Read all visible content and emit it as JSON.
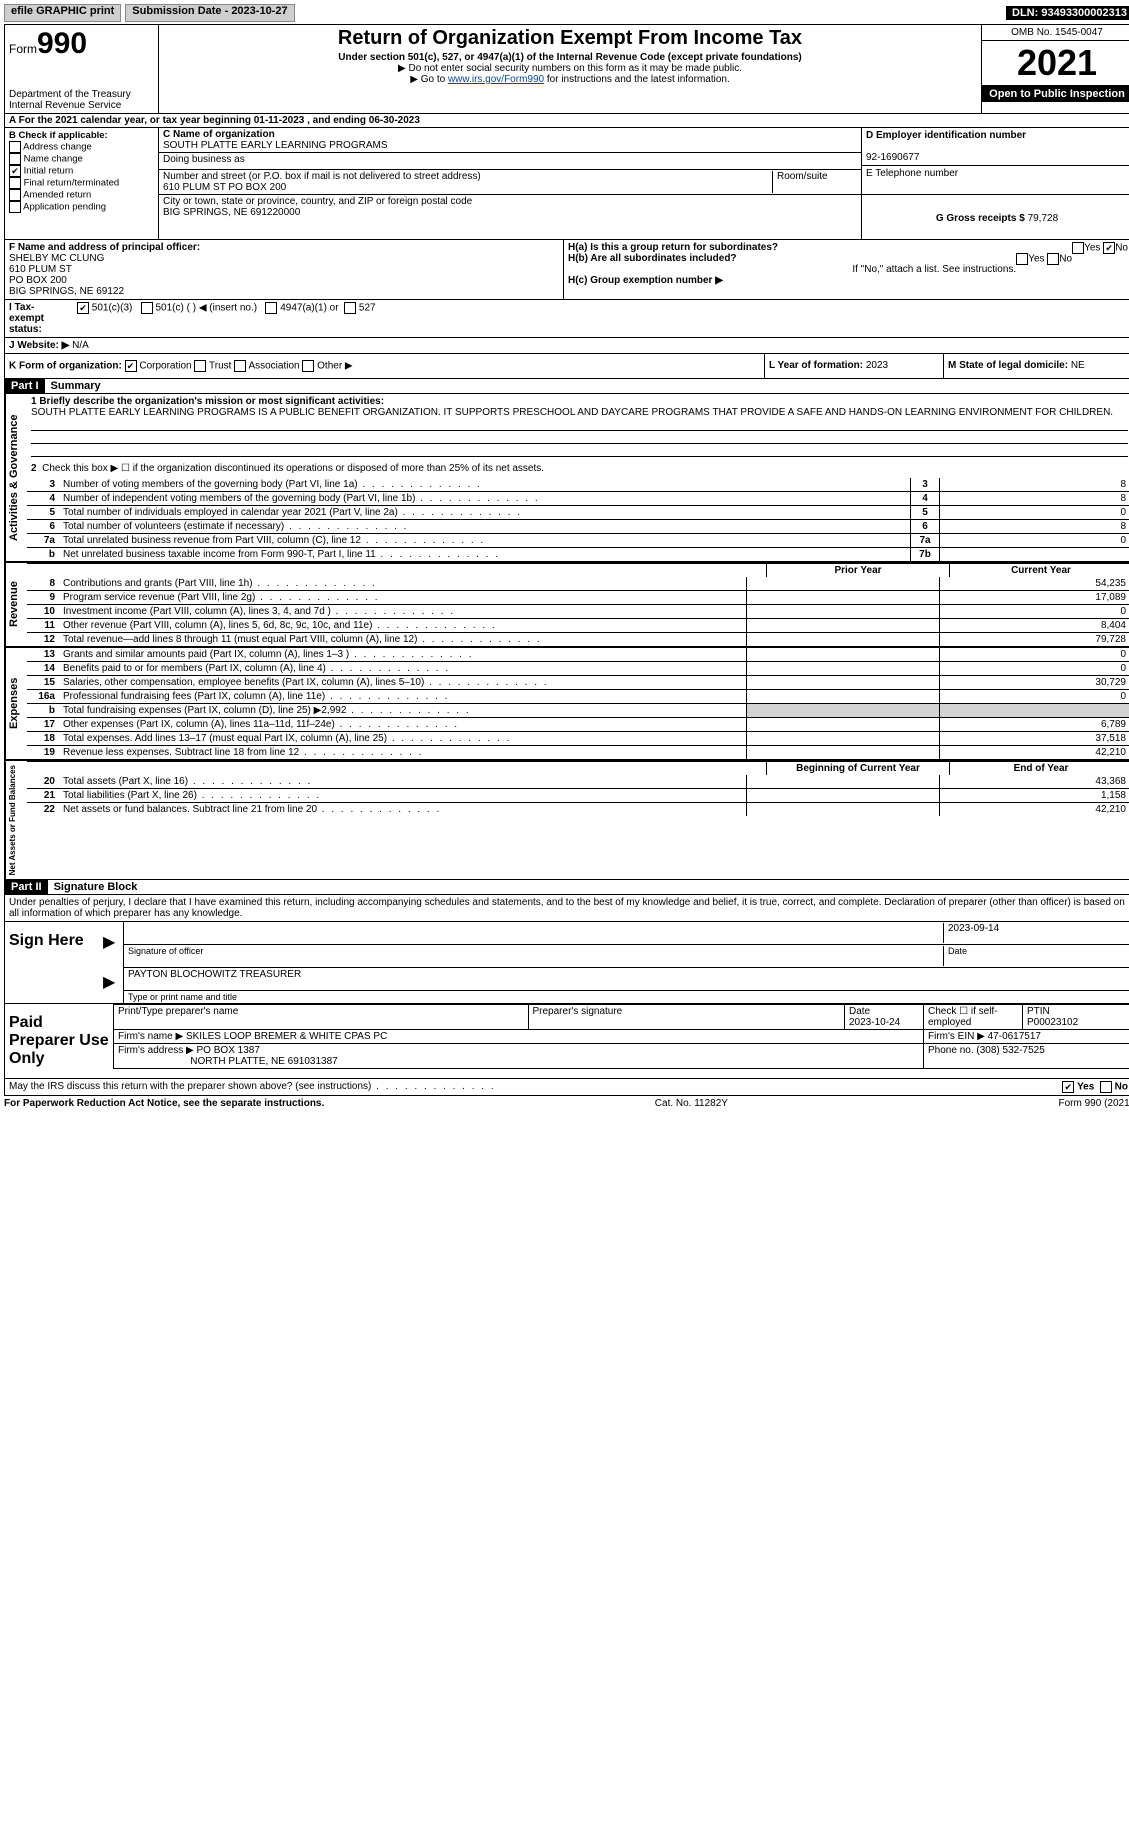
{
  "topbar": {
    "efile": "efile GRAPHIC print",
    "submission": "Submission Date - 2023-10-27",
    "dln": "DLN: 93493300002313"
  },
  "header": {
    "form_word": "Form",
    "form_no": "990",
    "dept": "Department of the Treasury",
    "irs": "Internal Revenue Service",
    "title": "Return of Organization Exempt From Income Tax",
    "sub1": "Under section 501(c), 527, or 4947(a)(1) of the Internal Revenue Code (except private foundations)",
    "sub2": "▶ Do not enter social security numbers on this form as it may be made public.",
    "sub3_pre": "▶ Go to ",
    "sub3_link": "www.irs.gov/Form990",
    "sub3_post": " for instructions and the latest information.",
    "omb": "OMB No. 1545-0047",
    "year": "2021",
    "opi": "Open to Public Inspection"
  },
  "row_a": "A For the 2021 calendar year, or tax year beginning 01-11-2023   , and ending 06-30-2023",
  "col_b": {
    "title": "B Check if applicable:",
    "opts": [
      "Address change",
      "Name change",
      "Initial return",
      "Final return/terminated",
      "Amended return",
      "Application pending"
    ],
    "checked": [
      false,
      false,
      true,
      false,
      false,
      false
    ]
  },
  "col_c": {
    "name_label": "C Name of organization",
    "name": "SOUTH PLATTE EARLY LEARNING PROGRAMS",
    "dba_label": "Doing business as",
    "street_label": "Number and street (or P.O. box if mail is not delivered to street address)",
    "room_label": "Room/suite",
    "street": "610 PLUM ST PO BOX 200",
    "city_label": "City or town, state or province, country, and ZIP or foreign postal code",
    "city": "BIG SPRINGS, NE  691220000"
  },
  "col_de": {
    "d_label": "D Employer identification number",
    "d_val": "92-1690677",
    "e_label": "E Telephone number",
    "g_label": "G Gross receipts $",
    "g_val": "79,728"
  },
  "row_f": {
    "label": "F  Name and address of principal officer:",
    "lines": [
      "SHELBY MC CLUNG",
      "610 PLUM ST",
      "PO BOX 200",
      "BIG SPRINGS, NE  69122"
    ]
  },
  "row_h": {
    "a_label": "H(a)  Is this a group return for subordinates?",
    "a_yes": "Yes",
    "a_no": "No",
    "b_label": "H(b)  Are all subordinates included?",
    "b_yes": "Yes",
    "b_no": "No",
    "b_note": "If \"No,\" attach a list. See instructions.",
    "c_label": "H(c)  Group exemption number ▶"
  },
  "row_i": {
    "label": "I  Tax-exempt status:",
    "opts": [
      "501(c)(3)",
      "501(c) (  ) ◀ (insert no.)",
      "4947(a)(1) or",
      "527"
    ]
  },
  "row_j": {
    "label": "J  Website: ▶",
    "val": "N/A"
  },
  "row_k": {
    "label": "K Form of organization:",
    "opts": [
      "Corporation",
      "Trust",
      "Association",
      "Other ▶"
    ],
    "l_label": "L Year of formation:",
    "l_val": "2023",
    "m_label": "M State of legal domicile:",
    "m_val": "NE"
  },
  "part1": {
    "header": "Part I",
    "title": "Summary",
    "q1_label": "1  Briefly describe the organization's mission or most significant activities:",
    "q1_text": "SOUTH PLATTE EARLY LEARNING PROGRAMS IS A PUBLIC BENEFIT ORGANIZATION. IT SUPPORTS PRESCHOOL AND DAYCARE PROGRAMS THAT PROVIDE A SAFE AND HANDS-ON LEARNING ENVIRONMENT FOR CHILDREN.",
    "q2": "Check this box ▶ ☐  if the organization discontinued its operations or disposed of more than 25% of its net assets.",
    "lines": [
      {
        "n": "3",
        "d": "Number of voting members of the governing body (Part VI, line 1a)",
        "b": "3",
        "v": "8"
      },
      {
        "n": "4",
        "d": "Number of independent voting members of the governing body (Part VI, line 1b)",
        "b": "4",
        "v": "8"
      },
      {
        "n": "5",
        "d": "Total number of individuals employed in calendar year 2021 (Part V, line 2a)",
        "b": "5",
        "v": "0"
      },
      {
        "n": "6",
        "d": "Total number of volunteers (estimate if necessary)",
        "b": "6",
        "v": "8"
      },
      {
        "n": "7a",
        "d": "Total unrelated business revenue from Part VIII, column (C), line 12",
        "b": "7a",
        "v": "0"
      },
      {
        "n": "b",
        "d": "Net unrelated business taxable income from Form 990-T, Part I, line 11",
        "b": "7b",
        "v": ""
      }
    ],
    "prior": "Prior Year",
    "current": "Current Year"
  },
  "revenue": {
    "label": "Revenue",
    "rows": [
      {
        "n": "8",
        "d": "Contributions and grants (Part VIII, line 1h)",
        "p": "",
        "c": "54,235"
      },
      {
        "n": "9",
        "d": "Program service revenue (Part VIII, line 2g)",
        "p": "",
        "c": "17,089"
      },
      {
        "n": "10",
        "d": "Investment income (Part VIII, column (A), lines 3, 4, and 7d )",
        "p": "",
        "c": "0"
      },
      {
        "n": "11",
        "d": "Other revenue (Part VIII, column (A), lines 5, 6d, 8c, 9c, 10c, and 11e)",
        "p": "",
        "c": "8,404"
      },
      {
        "n": "12",
        "d": "Total revenue—add lines 8 through 11 (must equal Part VIII, column (A), line 12)",
        "p": "",
        "c": "79,728"
      }
    ]
  },
  "expenses": {
    "label": "Expenses",
    "rows": [
      {
        "n": "13",
        "d": "Grants and similar amounts paid (Part IX, column (A), lines 1–3 )",
        "p": "",
        "c": "0"
      },
      {
        "n": "14",
        "d": "Benefits paid to or for members (Part IX, column (A), line 4)",
        "p": "",
        "c": "0"
      },
      {
        "n": "15",
        "d": "Salaries, other compensation, employee benefits (Part IX, column (A), lines 5–10)",
        "p": "",
        "c": "30,729"
      },
      {
        "n": "16a",
        "d": "Professional fundraising fees (Part IX, column (A), line 11e)",
        "p": "",
        "c": "0"
      },
      {
        "n": "b",
        "d": "Total fundraising expenses (Part IX, column (D), line 25) ▶2,992",
        "p": "gray",
        "c": "gray"
      },
      {
        "n": "17",
        "d": "Other expenses (Part IX, column (A), lines 11a–11d, 11f–24e)",
        "p": "",
        "c": "6,789"
      },
      {
        "n": "18",
        "d": "Total expenses. Add lines 13–17 (must equal Part IX, column (A), line 25)",
        "p": "",
        "c": "37,518"
      },
      {
        "n": "19",
        "d": "Revenue less expenses. Subtract line 18 from line 12",
        "p": "",
        "c": "42,210"
      }
    ]
  },
  "netassets": {
    "label": "Net Assets or Fund Balances",
    "begin": "Beginning of Current Year",
    "end": "End of Year",
    "rows": [
      {
        "n": "20",
        "d": "Total assets (Part X, line 16)",
        "p": "",
        "c": "43,368"
      },
      {
        "n": "21",
        "d": "Total liabilities (Part X, line 26)",
        "p": "",
        "c": "1,158"
      },
      {
        "n": "22",
        "d": "Net assets or fund balances. Subtract line 21 from line 20",
        "p": "",
        "c": "42,210"
      }
    ]
  },
  "part2": {
    "header": "Part II",
    "title": "Signature Block",
    "perjury": "Under penalties of perjury, I declare that I have examined this return, including accompanying schedules and statements, and to the best of my knowledge and belief, it is true, correct, and complete. Declaration of preparer (other than officer) is based on all information of which preparer has any knowledge."
  },
  "sign": {
    "label": "Sign Here",
    "sig_label": "Signature of officer",
    "date": "2023-09-14",
    "date_label": "Date",
    "name": "PAYTON BLOCHOWITZ  TREASURER",
    "name_label": "Type or print name and title"
  },
  "paid": {
    "label": "Paid Preparer Use Only",
    "h1": "Print/Type preparer's name",
    "h2": "Preparer's signature",
    "h3": "Date",
    "h4": "Check ☐ if self-employed",
    "h5": "PTIN",
    "date": "2023-10-24",
    "ptin": "P00023102",
    "firm_name_label": "Firm's name    ▶",
    "firm_name": "SKILES LOOP BREMER & WHITE CPAS PC",
    "firm_ein_label": "Firm's EIN ▶",
    "firm_ein": "47-0617517",
    "firm_addr_label": "Firm's address ▶",
    "firm_addr1": "PO BOX 1387",
    "firm_addr2": "NORTH PLATTE, NE  691031387",
    "phone_label": "Phone no.",
    "phone": "(308) 532-7525"
  },
  "discuss": {
    "q": "May the IRS discuss this return with the preparer shown above? (see instructions)",
    "yes": "Yes",
    "no": "No"
  },
  "footer": {
    "left": "For Paperwork Reduction Act Notice, see the separate instructions.",
    "mid": "Cat. No. 11282Y",
    "right": "Form 990 (2021)"
  },
  "side_labels": {
    "gov": "Activities & Governance"
  }
}
